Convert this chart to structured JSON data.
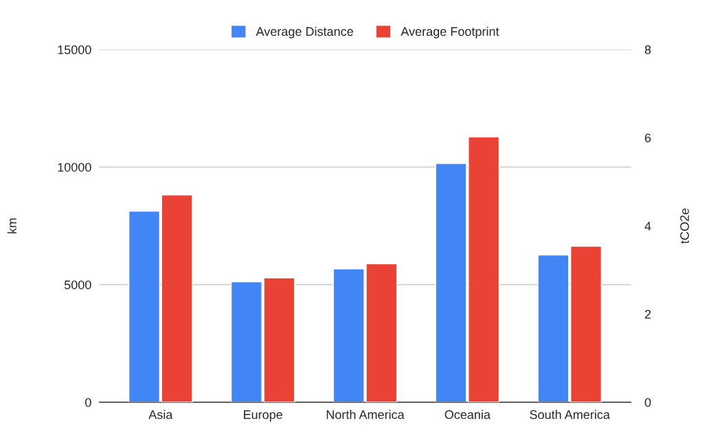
{
  "chart_data": {
    "type": "bar",
    "categories": [
      "Asia",
      "Europe",
      "North America",
      "Oceania",
      "South America"
    ],
    "series": [
      {
        "name": "Average Distance",
        "color": "#4285f4",
        "values": [
          8130,
          5120,
          5670,
          10150,
          6260
        ]
      },
      {
        "name": "Average Footprint",
        "color": "#ea4335",
        "values": [
          4.7,
          2.82,
          3.14,
          6.02,
          3.54
        ],
        "axis": "y2"
      }
    ],
    "ylabel": "km",
    "y2label": "tCO2e",
    "ylim": [
      0,
      15000
    ],
    "yticks": [
      0,
      5000,
      10000,
      15000
    ],
    "y2lim": [
      0,
      8
    ],
    "y2ticks": [
      0,
      2,
      4,
      6,
      8
    ],
    "grid": "y",
    "legend": "top"
  }
}
